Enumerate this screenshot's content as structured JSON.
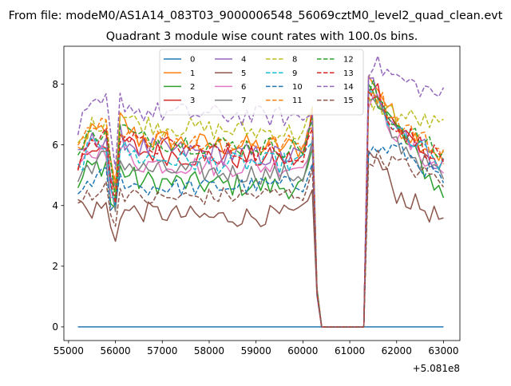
{
  "suptitle": "From file: modeM0/AS1A14_083T03_9000006548_56069cztM0_level2_quad_clean.evt",
  "chart_data": {
    "type": "line",
    "title": "Quadrant 3 module wise count rates with 100.0s bins.",
    "xlabel": "",
    "ylabel": "",
    "x_offset_label": "+5.081e8",
    "xlim": [
      54900,
      63350
    ],
    "ylim": [
      -0.45,
      9.25
    ],
    "x_ticks": [
      55000,
      56000,
      57000,
      58000,
      59000,
      60000,
      61000,
      62000,
      63000
    ],
    "y_ticks": [
      0,
      2,
      4,
      6,
      8
    ],
    "legend_position": "top-center",
    "legend_columns": 4,
    "x_start": 55200,
    "x_step": 100,
    "x_end": 63000,
    "data_gap": {
      "enter_x": 60300,
      "zero_from_x": 60400,
      "zero_to_x": 61300,
      "recover_x": 61400
    },
    "series": [
      {
        "name": "0",
        "color": "#1f77b4",
        "style": "solid",
        "constant": 0
      },
      {
        "name": "1",
        "color": "#ff7f0e",
        "style": "solid",
        "segments": [
          [
            55200,
            5.8
          ],
          [
            55400,
            6.2
          ],
          [
            55800,
            6.6
          ],
          [
            55900,
            5.2
          ],
          [
            56000,
            4.4
          ],
          [
            56100,
            6.8
          ],
          [
            56500,
            6.2
          ],
          [
            58000,
            6.0
          ],
          [
            60000,
            5.9
          ],
          [
            60200,
            7.1
          ],
          [
            61500,
            8.2
          ],
          [
            62000,
            6.7
          ],
          [
            63000,
            5.6
          ]
        ],
        "noise": 0.4
      },
      {
        "name": "2",
        "color": "#2ca02c",
        "style": "solid",
        "segments": [
          [
            55200,
            4.6
          ],
          [
            55400,
            5.2
          ],
          [
            55800,
            5.4
          ],
          [
            55900,
            4.1
          ],
          [
            56000,
            3.9
          ],
          [
            56100,
            5.2
          ],
          [
            56500,
            4.8
          ],
          [
            58000,
            4.7
          ],
          [
            60000,
            4.6
          ],
          [
            60200,
            5.5
          ],
          [
            61500,
            7.9
          ],
          [
            62000,
            6.5
          ],
          [
            63000,
            4.3
          ]
        ],
        "noise": 0.4
      },
      {
        "name": "3",
        "color": "#d62728",
        "style": "solid",
        "segments": [
          [
            55200,
            5.3
          ],
          [
            55400,
            5.8
          ],
          [
            55800,
            6.2
          ],
          [
            55900,
            4.8
          ],
          [
            56000,
            4.1
          ],
          [
            56100,
            6.2
          ],
          [
            56500,
            5.8
          ],
          [
            58000,
            5.6
          ],
          [
            60000,
            5.5
          ],
          [
            60200,
            6.9
          ],
          [
            61500,
            8.1
          ],
          [
            62000,
            6.6
          ],
          [
            63000,
            5.2
          ]
        ],
        "noise": 0.4
      },
      {
        "name": "4",
        "color": "#9467bd",
        "style": "solid",
        "segments": [
          [
            55200,
            5.5
          ],
          [
            55400,
            6.0
          ],
          [
            55800,
            6.3
          ],
          [
            55900,
            5.0
          ],
          [
            56000,
            4.3
          ],
          [
            56100,
            6.3
          ],
          [
            56500,
            5.9
          ],
          [
            58000,
            5.7
          ],
          [
            60000,
            5.6
          ],
          [
            60200,
            7.0
          ],
          [
            61500,
            8.0
          ],
          [
            62000,
            6.7
          ],
          [
            63000,
            5.3
          ]
        ],
        "noise": 0.4
      },
      {
        "name": "5",
        "color": "#8c564b",
        "style": "solid",
        "segments": [
          [
            55200,
            4.2
          ],
          [
            55400,
            3.8
          ],
          [
            55800,
            4.0
          ],
          [
            55900,
            3.2
          ],
          [
            56000,
            2.95
          ],
          [
            56100,
            3.8
          ],
          [
            56500,
            3.8
          ],
          [
            58000,
            3.6
          ],
          [
            60000,
            3.7
          ],
          [
            60200,
            4.4
          ],
          [
            61500,
            5.7
          ],
          [
            62000,
            4.4
          ],
          [
            63000,
            3.5
          ]
        ],
        "noise": 0.35
      },
      {
        "name": "6",
        "color": "#e377c2",
        "style": "solid",
        "segments": [
          [
            55200,
            5.0
          ],
          [
            55400,
            5.6
          ],
          [
            55800,
            5.9
          ],
          [
            55900,
            4.6
          ],
          [
            56000,
            4.0
          ],
          [
            56100,
            5.9
          ],
          [
            56500,
            5.4
          ],
          [
            58000,
            5.3
          ],
          [
            60000,
            5.3
          ],
          [
            60200,
            6.3
          ],
          [
            61500,
            7.6
          ],
          [
            62000,
            6.3
          ],
          [
            63000,
            5.1
          ]
        ],
        "noise": 0.35
      },
      {
        "name": "7",
        "color": "#7f7f7f",
        "style": "solid",
        "segments": [
          [
            55200,
            4.8
          ],
          [
            55400,
            5.3
          ],
          [
            55800,
            5.6
          ],
          [
            55900,
            4.4
          ],
          [
            56000,
            3.9
          ],
          [
            56100,
            5.5
          ],
          [
            56500,
            5.2
          ],
          [
            58000,
            5.1
          ],
          [
            60000,
            5.0
          ],
          [
            60200,
            6.0
          ],
          [
            61500,
            7.4
          ],
          [
            62000,
            6.1
          ],
          [
            63000,
            4.9
          ]
        ],
        "noise": 0.35
      },
      {
        "name": "8",
        "color": "#bcbd22",
        "style": "dashed",
        "segments": [
          [
            55200,
            5.9
          ],
          [
            55400,
            6.5
          ],
          [
            55800,
            6.9
          ],
          [
            55900,
            5.5
          ],
          [
            56000,
            4.6
          ],
          [
            56100,
            7.0
          ],
          [
            56500,
            6.7
          ],
          [
            58000,
            6.5
          ],
          [
            60000,
            6.4
          ],
          [
            60200,
            7.0
          ],
          [
            61500,
            7.4
          ],
          [
            62000,
            7.0
          ],
          [
            63000,
            6.6
          ]
        ],
        "noise": 0.35
      },
      {
        "name": "9",
        "color": "#17becf",
        "style": "dashed",
        "segments": [
          [
            55200,
            5.2
          ],
          [
            55400,
            5.8
          ],
          [
            55800,
            6.1
          ],
          [
            55900,
            4.8
          ],
          [
            56000,
            4.2
          ],
          [
            56100,
            5.9
          ],
          [
            56500,
            5.6
          ],
          [
            58000,
            5.4
          ],
          [
            60000,
            5.4
          ],
          [
            60200,
            6.2
          ],
          [
            61500,
            7.6
          ],
          [
            62000,
            6.4
          ],
          [
            63000,
            5.3
          ]
        ],
        "noise": 0.35
      },
      {
        "name": "10",
        "color": "#1f77b4",
        "style": "dashed",
        "segments": [
          [
            55200,
            4.3
          ],
          [
            55400,
            4.8
          ],
          [
            55800,
            5.0
          ],
          [
            55900,
            4.0
          ],
          [
            56000,
            3.9
          ],
          [
            56100,
            4.9
          ],
          [
            56500,
            4.6
          ],
          [
            58000,
            4.6
          ],
          [
            60000,
            4.7
          ],
          [
            60200,
            5.6
          ],
          [
            61500,
            5.8
          ],
          [
            62000,
            5.9
          ],
          [
            63000,
            4.8
          ]
        ],
        "noise": 0.3
      },
      {
        "name": "11",
        "color": "#ff7f0e",
        "style": "dashed",
        "segments": [
          [
            55200,
            5.7
          ],
          [
            55400,
            6.3
          ],
          [
            55800,
            6.7
          ],
          [
            55900,
            5.3
          ],
          [
            56000,
            4.5
          ],
          [
            56100,
            6.7
          ],
          [
            56500,
            6.3
          ],
          [
            58000,
            6.1
          ],
          [
            60000,
            6.0
          ],
          [
            60200,
            6.9
          ],
          [
            61500,
            7.9
          ],
          [
            62000,
            6.8
          ],
          [
            63000,
            5.7
          ]
        ],
        "noise": 0.35
      },
      {
        "name": "12",
        "color": "#2ca02c",
        "style": "dashed",
        "segments": [
          [
            55200,
            5.6
          ],
          [
            55400,
            6.2
          ],
          [
            55800,
            6.6
          ],
          [
            55900,
            5.2
          ],
          [
            56000,
            4.4
          ],
          [
            56100,
            6.6
          ],
          [
            56500,
            6.2
          ],
          [
            58000,
            6.0
          ],
          [
            60000,
            5.9
          ],
          [
            60200,
            6.8
          ],
          [
            61500,
            7.8
          ],
          [
            62000,
            6.7
          ],
          [
            63000,
            5.6
          ]
        ],
        "noise": 0.35
      },
      {
        "name": "13",
        "color": "#d62728",
        "style": "dashed",
        "segments": [
          [
            55200,
            5.4
          ],
          [
            55400,
            6.0
          ],
          [
            55800,
            6.3
          ],
          [
            55900,
            5.0
          ],
          [
            56000,
            4.3
          ],
          [
            56100,
            6.4
          ],
          [
            56500,
            6.0
          ],
          [
            58000,
            5.8
          ],
          [
            60000,
            5.7
          ],
          [
            60200,
            6.6
          ],
          [
            61500,
            7.7
          ],
          [
            62000,
            6.6
          ],
          [
            63000,
            5.5
          ]
        ],
        "noise": 0.35
      },
      {
        "name": "14",
        "color": "#9467bd",
        "style": "dashed",
        "segments": [
          [
            55200,
            6.5
          ],
          [
            55400,
            7.0
          ],
          [
            55800,
            7.4
          ],
          [
            55900,
            6.2
          ],
          [
            56000,
            5.0
          ],
          [
            56100,
            7.5
          ],
          [
            56500,
            7.1
          ],
          [
            58000,
            7.0
          ],
          [
            60000,
            6.9
          ],
          [
            60200,
            7.0
          ],
          [
            61500,
            8.7
          ],
          [
            62000,
            8.2
          ],
          [
            63000,
            7.6
          ]
        ],
        "noise": 0.35
      },
      {
        "name": "15",
        "color": "#8c564b",
        "style": "dashed",
        "segments": [
          [
            55200,
            4.0
          ],
          [
            55400,
            4.4
          ],
          [
            55800,
            4.6
          ],
          [
            55900,
            3.7
          ],
          [
            56000,
            3.6
          ],
          [
            56100,
            4.5
          ],
          [
            56500,
            4.2
          ],
          [
            58000,
            4.3
          ],
          [
            60000,
            4.4
          ],
          [
            60200,
            5.0
          ],
          [
            61500,
            5.6
          ],
          [
            62000,
            5.4
          ],
          [
            63000,
            4.8
          ]
        ],
        "noise": 0.3
      }
    ]
  }
}
